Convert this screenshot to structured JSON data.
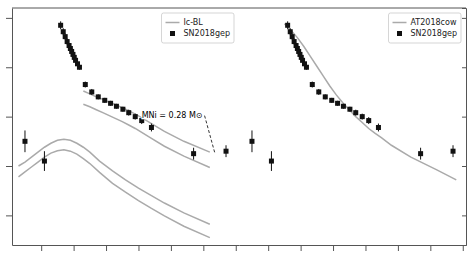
{
  "chart_data": [
    {
      "type": "line",
      "xlim": [
        -9.5,
        25.5
      ],
      "ylim": [
        40.4,
        45.2
      ],
      "xticks": [
        -5,
        0,
        5,
        10,
        15,
        20,
        25
      ],
      "yticks": [
        41,
        42,
        43,
        44,
        45
      ],
      "tick_labels": false,
      "legend": "upper right",
      "series": [
        {
          "name": "Ic-BL",
          "type": "line",
          "color": "#aaaaaa",
          "x": [
            1.5,
            2.5,
            3.5,
            4.5,
            5.5,
            6.5,
            7.5,
            8.5,
            9.5,
            10.5,
            12.0,
            14.0,
            17.0,
            21.0,
            null,
            1.5,
            2.5,
            3.5,
            4.5,
            5.5,
            6.5,
            7.5,
            8.5,
            9.5,
            10.5,
            12.0,
            14.0,
            17.0,
            21.0,
            null,
            -8.5,
            -7.5,
            -6.5,
            -5.5,
            -4.5,
            -3.5,
            -2.5,
            -1.5,
            -0.5,
            0.5,
            1.5,
            2.5,
            4.0,
            6.0,
            8.0,
            10.0,
            12.0,
            14.0,
            17.0,
            21.0,
            null,
            -8.5,
            -7.5,
            -6.5,
            -5.5,
            -4.5,
            -3.5,
            -2.5,
            -1.5,
            -0.5,
            0.5,
            1.5,
            2.5,
            4.0,
            6.0,
            8.0,
            10.0,
            12.0,
            14.0,
            17.0,
            21.0
          ],
          "values": [
            43.52,
            43.46,
            43.4,
            43.35,
            43.29,
            43.24,
            43.18,
            43.12,
            43.05,
            42.98,
            42.86,
            42.7,
            42.5,
            42.28,
            null,
            43.25,
            43.2,
            43.14,
            43.08,
            43.02,
            42.96,
            42.9,
            42.83,
            42.76,
            42.68,
            42.56,
            42.4,
            42.2,
            41.97,
            null,
            42.0,
            42.08,
            42.18,
            42.28,
            42.38,
            42.46,
            42.52,
            42.54,
            42.52,
            42.46,
            42.38,
            42.28,
            42.1,
            41.9,
            41.72,
            41.55,
            41.4,
            41.25,
            41.05,
            40.82,
            null,
            41.78,
            41.88,
            41.98,
            42.08,
            42.18,
            42.26,
            42.31,
            42.33,
            42.3,
            42.24,
            42.15,
            42.05,
            41.87,
            41.65,
            41.47,
            41.3,
            41.14,
            40.99,
            40.78,
            40.55
          ]
        },
        {
          "name": "SN2018gep",
          "type": "scatter",
          "marker": "square",
          "color": "#111111",
          "x": [
            -2.0,
            -1.6,
            -1.3,
            -1.0,
            -0.7,
            -0.5,
            -0.3,
            -0.1,
            0.1,
            0.3,
            0.6,
            0.9,
            1.8,
            2.8,
            3.8,
            4.8,
            5.7,
            6.6,
            7.6,
            8.5,
            9.5,
            10.5,
            12.0,
            18.5,
            -7.5,
            -4.5,
            23.5
          ],
          "values": [
            44.85,
            44.72,
            44.62,
            44.52,
            44.44,
            44.38,
            44.32,
            44.26,
            44.2,
            44.14,
            44.07,
            44.0,
            43.65,
            43.5,
            43.4,
            43.33,
            43.27,
            43.21,
            43.15,
            43.08,
            43.0,
            42.92,
            42.78,
            42.25,
            42.5,
            42.1,
            42.3
          ],
          "errors": [
            0.08,
            0.07,
            0.06,
            0.06,
            0.05,
            0.05,
            0.05,
            0.05,
            0.05,
            0.05,
            0.05,
            0.05,
            0.06,
            0.06,
            0.05,
            0.05,
            0.05,
            0.05,
            0.05,
            0.06,
            0.06,
            0.07,
            0.08,
            0.12,
            0.22,
            0.2,
            0.12
          ]
        }
      ],
      "annotations": [
        {
          "text": "MNi = 0.28 M⊙",
          "x": 10.5,
          "y": 43.02,
          "point_x": 21.8,
          "point_y": 42.25
        }
      ]
    },
    {
      "type": "line",
      "xlim": [
        -9.5,
        25.5
      ],
      "ylim": [
        40.4,
        45.2
      ],
      "xticks": [
        -5,
        0,
        5,
        10,
        15,
        20,
        25
      ],
      "yticks": [
        41,
        42,
        43,
        44,
        45
      ],
      "tick_labels": false,
      "legend": "upper right",
      "series": [
        {
          "name": "AT2018cow",
          "type": "line",
          "color": "#aaaaaa",
          "x": [
            -2.5,
            -1.5,
            -0.5,
            0.5,
            1.5,
            2.5,
            3.5,
            4.5,
            5.5,
            6.5,
            7.5,
            8.5,
            9.5,
            10.5,
            11.5,
            12.5,
            14.0,
            17.0,
            21.0,
            24.0
          ],
          "values": [
            44.88,
            44.75,
            44.6,
            44.42,
            44.22,
            44.02,
            43.82,
            43.62,
            43.44,
            43.28,
            43.14,
            43.0,
            42.88,
            42.76,
            42.66,
            42.57,
            42.42,
            42.18,
            41.92,
            41.72
          ]
        },
        {
          "name": "SN2018gep",
          "type": "scatter",
          "marker": "square",
          "color": "#111111",
          "x": [
            -2.0,
            -1.6,
            -1.3,
            -1.0,
            -0.7,
            -0.5,
            -0.3,
            -0.1,
            0.1,
            0.3,
            0.6,
            0.9,
            1.8,
            2.8,
            3.8,
            4.8,
            5.7,
            6.6,
            7.6,
            8.5,
            9.5,
            10.5,
            12.0,
            18.5,
            -7.5,
            -4.5,
            23.5
          ],
          "values": [
            44.85,
            44.72,
            44.62,
            44.52,
            44.44,
            44.38,
            44.32,
            44.26,
            44.2,
            44.14,
            44.07,
            44.0,
            43.65,
            43.5,
            43.4,
            43.33,
            43.27,
            43.21,
            43.15,
            43.08,
            43.0,
            42.92,
            42.78,
            42.25,
            42.5,
            42.1,
            42.3
          ],
          "errors": [
            0.08,
            0.07,
            0.06,
            0.06,
            0.05,
            0.05,
            0.05,
            0.05,
            0.05,
            0.05,
            0.05,
            0.05,
            0.06,
            0.06,
            0.05,
            0.05,
            0.05,
            0.05,
            0.05,
            0.06,
            0.06,
            0.07,
            0.08,
            0.12,
            0.22,
            0.2,
            0.12
          ]
        }
      ]
    }
  ]
}
